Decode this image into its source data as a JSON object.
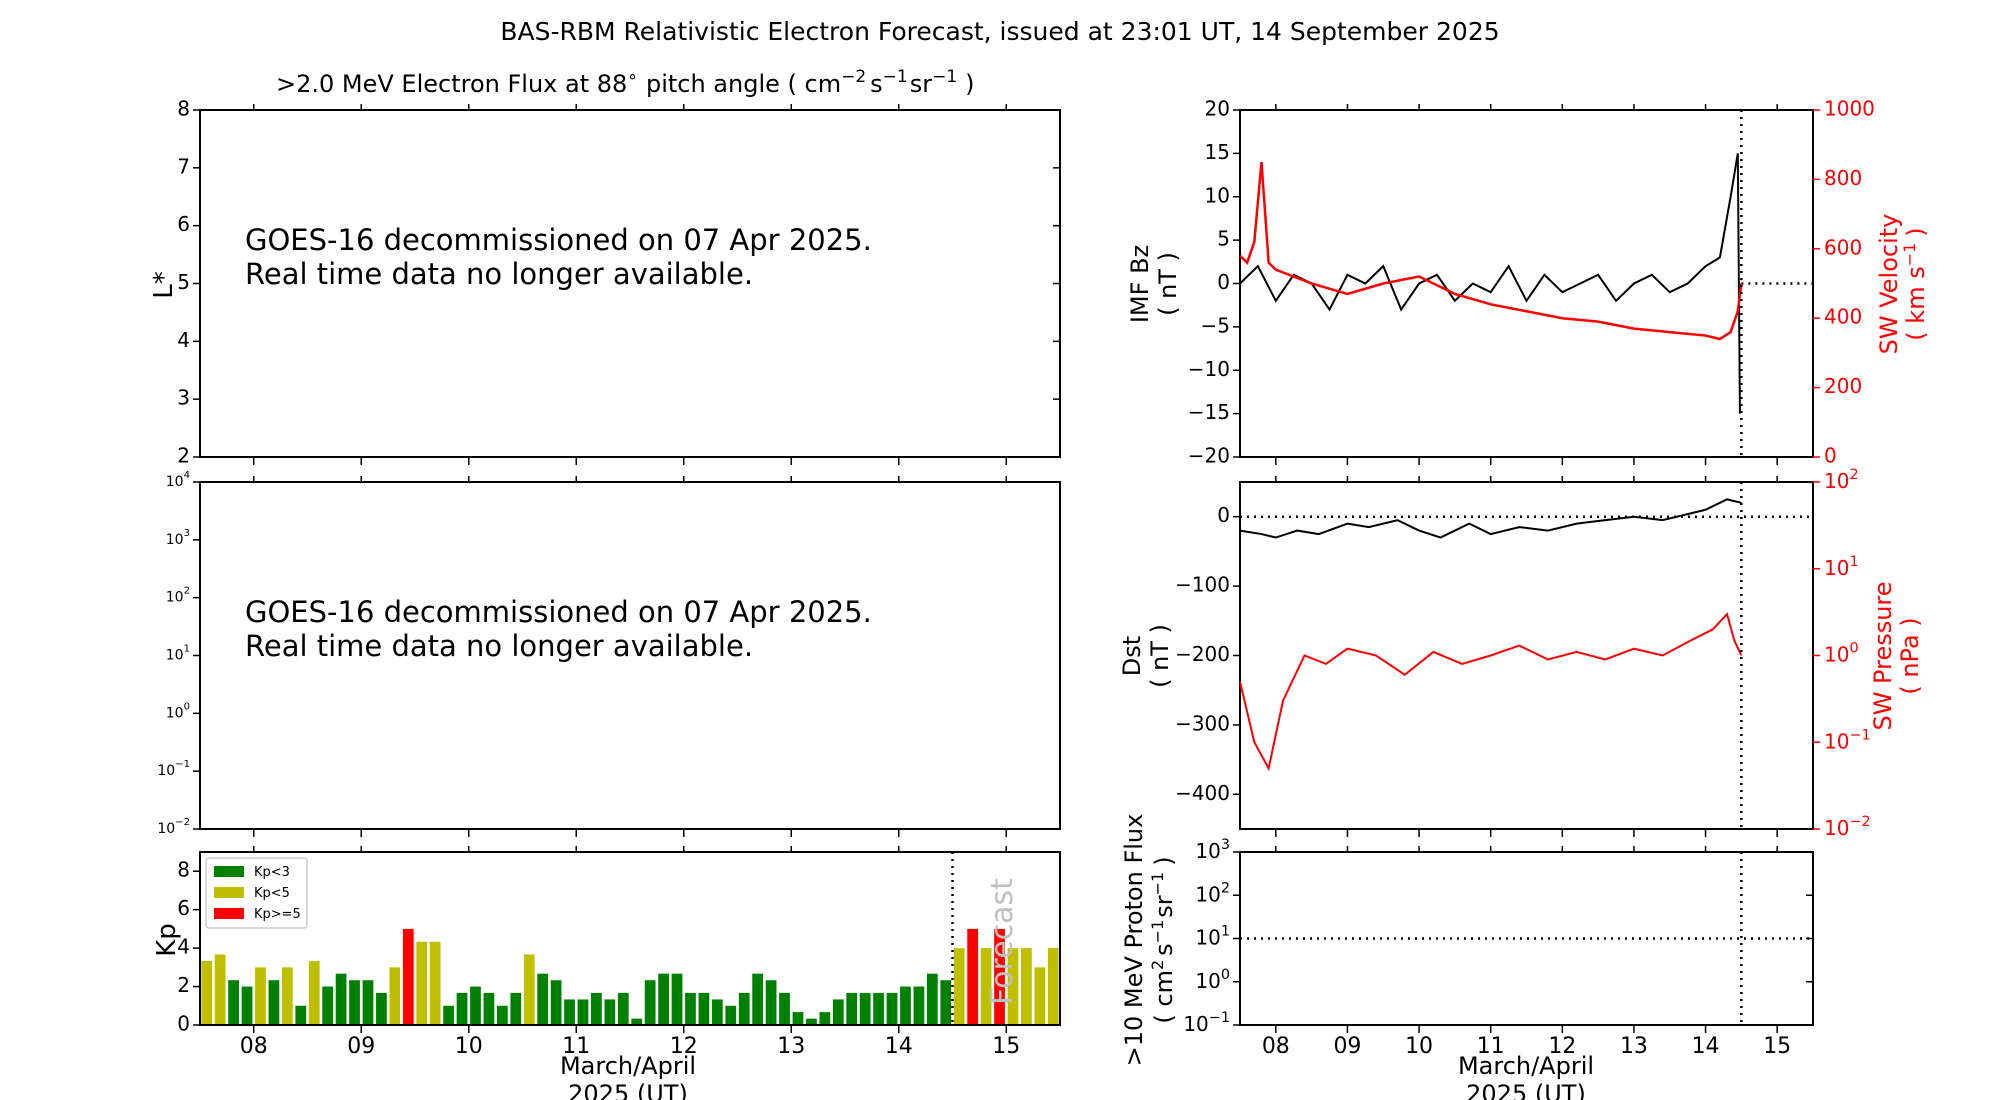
{
  "title": "BAS-RBM Relativistic Electron Forecast, issued at 23:01 UT, 14 September 2025",
  "colors": {
    "kp_low": "#008000",
    "kp_mid": "#bfbf00",
    "kp_high": "#ff0000",
    "red": "#ff0000",
    "black": "#000000",
    "forecast_text": "#c0c0c0"
  },
  "chart_data": [
    {
      "id": "lstar_flux",
      "type": "heatmap",
      "title_main": ">2.0 MeV Electron Flux at 88",
      "title_deg": "∘",
      "title_mid": "pitch angle ( cm",
      "title_sup1": "−2",
      "title_s": "s",
      "title_sup2": "−1",
      "title_sr": "sr",
      "title_sup3": "−1",
      "title_end": ")",
      "ylabel": "L*",
      "ylim": [
        2,
        8
      ],
      "yticks": [
        "2",
        "3",
        "4",
        "5",
        "6",
        "7",
        "8"
      ],
      "message_line1": "GOES-16 decommissioned on 07 Apr 2025.",
      "message_line2": "Real time data no longer available."
    },
    {
      "id": "goes_flux",
      "type": "line",
      "yscale": "log",
      "ylim": [
        0.01,
        10000
      ],
      "ytick_base": "10",
      "ytick_exps": [
        "−2",
        "−1",
        "0",
        "1",
        "2",
        "3",
        "4"
      ],
      "message_line1": "GOES-16 decommissioned on 07 Apr 2025.",
      "message_line2": "Real time data no longer available."
    },
    {
      "id": "kp",
      "type": "bar",
      "ylabel": "Kp",
      "ylim": [
        0,
        9
      ],
      "yticks": [
        "0",
        "2",
        "4",
        "6",
        "8"
      ],
      "xlim": [
        7.5,
        15.5
      ],
      "xticks": [
        "08",
        "09",
        "10",
        "11",
        "12",
        "13",
        "14",
        "15"
      ],
      "xlabel_line1": "March/April",
      "xlabel_line2": "2025 (UT)",
      "legend": [
        "Kp<3",
        "Kp<5",
        "Kp>=5"
      ],
      "forecast_label": "Forecast",
      "forecast_start_day": 14.5,
      "start_day": 7.5,
      "bin_days": 0.125,
      "values": [
        3.33,
        3.67,
        2.33,
        2.0,
        3.0,
        2.33,
        3.0,
        1.0,
        3.33,
        2.0,
        2.67,
        2.33,
        2.33,
        1.67,
        3.0,
        5.0,
        4.33,
        4.33,
        1.0,
        1.67,
        2.0,
        1.67,
        1.0,
        1.67,
        3.67,
        2.67,
        2.33,
        1.33,
        1.33,
        1.67,
        1.33,
        1.67,
        0.33,
        2.33,
        2.67,
        2.67,
        1.67,
        1.67,
        1.33,
        1.0,
        1.67,
        2.67,
        2.33,
        1.67,
        0.67,
        0.33,
        0.67,
        1.33,
        1.67,
        1.67,
        1.67,
        1.67,
        2.0,
        2.0,
        2.67,
        2.33,
        4.0,
        5.0,
        4.0,
        5.0,
        4.0,
        4.0,
        3.0,
        4.0
      ]
    },
    {
      "id": "imf_sw",
      "type": "line",
      "ylabel_left_line1": "IMF Bz",
      "ylabel_left_line2": "( nT )",
      "ylim_left": [
        -20,
        20
      ],
      "yticks_left": [
        "−20",
        "−15",
        "−10",
        "−5",
        "0",
        "5",
        "10",
        "15",
        "20"
      ],
      "ylabel_right_line1": "SW Velocity",
      "ylabel_right_line2a": "( km s",
      "ylabel_right_sup": "−1",
      "ylabel_right_line2b": ")",
      "ylim_right": [
        0,
        1000
      ],
      "yticks_right": [
        "0",
        "200",
        "400",
        "600",
        "800",
        "1000"
      ],
      "xlim": [
        7.5,
        15.5
      ],
      "now_day": 14.5,
      "series": [
        {
          "name": "IMF Bz",
          "color": "#000000",
          "days": [
            7.5,
            7.75,
            8.0,
            8.25,
            8.5,
            8.75,
            9.0,
            9.25,
            9.5,
            9.75,
            10.0,
            10.25,
            10.5,
            10.75,
            11.0,
            11.25,
            11.5,
            11.75,
            12.0,
            12.25,
            12.5,
            12.75,
            13.0,
            13.25,
            13.5,
            13.75,
            14.0,
            14.2,
            14.35,
            14.45,
            14.48
          ],
          "values": [
            0,
            2,
            -2,
            1,
            0,
            -3,
            1,
            0,
            2,
            -3,
            0,
            1,
            -2,
            0,
            -1,
            2,
            -2,
            1,
            -1,
            0,
            1,
            -2,
            0,
            1,
            -1,
            0,
            2,
            3,
            10,
            15,
            -15
          ]
        },
        {
          "name": "SW Velocity",
          "color": "#ff0000",
          "days": [
            7.5,
            7.6,
            7.7,
            7.8,
            7.9,
            8.0,
            8.5,
            9.0,
            9.5,
            10.0,
            10.5,
            11.0,
            11.5,
            12.0,
            12.5,
            13.0,
            13.5,
            14.0,
            14.2,
            14.35,
            14.45,
            14.5
          ],
          "values": [
            580,
            560,
            620,
            850,
            560,
            540,
            500,
            470,
            500,
            520,
            470,
            440,
            420,
            400,
            390,
            370,
            360,
            350,
            340,
            360,
            420,
            500
          ]
        }
      ]
    },
    {
      "id": "dst_pressure",
      "type": "line",
      "ylabel_left_line1": "Dst",
      "ylabel_left_line2": "( nT )",
      "ylim_left": [
        -450,
        50
      ],
      "yticks_left": [
        "0",
        "−100",
        "−200",
        "−300",
        "−400"
      ],
      "ylabel_right_line1": "SW Pressure",
      "ylabel_right_line2": "( nPa )",
      "yscale_right": "log",
      "ylim_right": [
        0.01,
        100
      ],
      "ytick_right_base": "10",
      "ytick_right_exps": [
        "−2",
        "−1",
        "0",
        "1",
        "2"
      ],
      "series": [
        {
          "name": "Dst",
          "color": "#000000",
          "days": [
            7.5,
            7.8,
            8.0,
            8.3,
            8.6,
            9.0,
            9.3,
            9.7,
            10.0,
            10.3,
            10.7,
            11.0,
            11.4,
            11.8,
            12.2,
            12.6,
            13.0,
            13.4,
            13.8,
            14.0,
            14.3,
            14.5
          ],
          "values": [
            -20,
            -25,
            -30,
            -20,
            -25,
            -10,
            -15,
            -5,
            -20,
            -30,
            -10,
            -25,
            -15,
            -20,
            -10,
            -5,
            0,
            -5,
            5,
            10,
            25,
            20
          ]
        },
        {
          "name": "SW Pressure",
          "color": "#ff0000",
          "days": [
            7.5,
            7.7,
            7.9,
            8.1,
            8.4,
            8.7,
            9.0,
            9.4,
            9.8,
            10.2,
            10.6,
            11.0,
            11.4,
            11.8,
            12.2,
            12.6,
            13.0,
            13.4,
            13.8,
            14.1,
            14.3,
            14.4,
            14.5
          ],
          "values": [
            0.5,
            0.1,
            0.05,
            0.3,
            1.0,
            0.8,
            1.2,
            1.0,
            0.6,
            1.1,
            0.8,
            1.0,
            1.3,
            0.9,
            1.1,
            0.9,
            1.2,
            1.0,
            1.5,
            2.0,
            3.0,
            1.5,
            1.0
          ]
        }
      ]
    },
    {
      "id": "proton_flux",
      "type": "line",
      "ylabel_line1": ">10 MeV Proton Flux",
      "ylabel_line2_a": "( cm",
      "ylabel_line2_sup1": "2",
      "ylabel_line2_s": "s",
      "ylabel_line2_sup2": "−1",
      "ylabel_line2_sr": "sr",
      "ylabel_line2_sup3": "−1",
      "ylabel_line2_end": ")",
      "yscale": "log",
      "ylim": [
        0.1,
        1000
      ],
      "ytick_base": "10",
      "ytick_exps": [
        "−1",
        "0",
        "1",
        "2",
        "3"
      ],
      "threshold": 10,
      "xlim": [
        7.5,
        15.5
      ],
      "xticks": [
        "08",
        "09",
        "10",
        "11",
        "12",
        "13",
        "14",
        "15"
      ],
      "xlabel_line1": "March/April",
      "xlabel_line2": "2025 (UT)"
    }
  ]
}
